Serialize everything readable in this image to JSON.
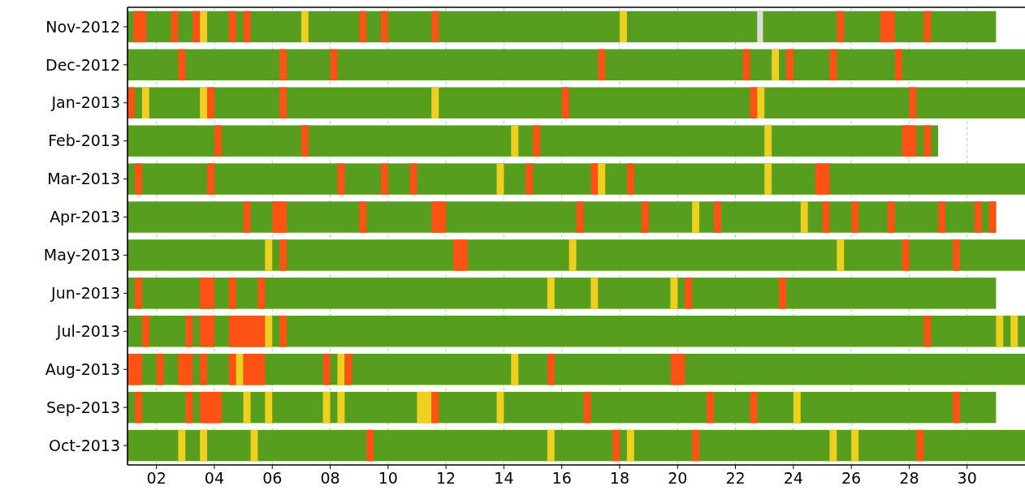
{
  "chart_data": {
    "type": "bar",
    "orientation": "horizontal",
    "categories": [
      "Nov-2012",
      "Dec-2012",
      "Jan-2013",
      "Feb-2013",
      "Mar-2013",
      "Apr-2013",
      "May-2013",
      "Jun-2013",
      "Jul-2013",
      "Aug-2013",
      "Sep-2013",
      "Oct-2013"
    ],
    "xlim": [
      1,
      32
    ],
    "xticks": [
      {
        "value": 2,
        "label": "02"
      },
      {
        "value": 4,
        "label": "04"
      },
      {
        "value": 6,
        "label": "06"
      },
      {
        "value": 8,
        "label": "08"
      },
      {
        "value": 10,
        "label": "10"
      },
      {
        "value": 12,
        "label": "12"
      },
      {
        "value": 14,
        "label": "14"
      },
      {
        "value": 16,
        "label": "16"
      },
      {
        "value": 18,
        "label": "18"
      },
      {
        "value": 20,
        "label": "20"
      },
      {
        "value": 22,
        "label": "22"
      },
      {
        "value": 24,
        "label": "24"
      },
      {
        "value": 26,
        "label": "26"
      },
      {
        "value": 28,
        "label": "28"
      },
      {
        "value": 30,
        "label": "30"
      }
    ],
    "grid": "x",
    "series": [
      {
        "color": "#589e1e",
        "base": [
          1,
          1,
          1,
          1,
          1,
          1,
          1,
          1,
          1,
          1,
          1,
          1
        ],
        "values": [
          30,
          31,
          31,
          28,
          31,
          30,
          31,
          30,
          31,
          31,
          30,
          31
        ]
      },
      {
        "base": [
          1.2,
          2.75,
          1,
          4,
          1.25,
          5,
          5.75,
          1.25,
          1.5,
          1,
          1.25,
          2.75
        ],
        "values": [
          0.45,
          0.25,
          0.25,
          0.25,
          0.25,
          0.25,
          0.25,
          0.25,
          0.25,
          0.5,
          0.25,
          0.25
        ],
        "colors": [
          "#fe5214",
          "#fe5214",
          "#fe5214",
          "#fe5214",
          "#fe5214",
          "#fe5214",
          "#efcf1f",
          "#fe5214",
          "#fe5214",
          "#fe5214",
          "#fe5214",
          "#efcf1f"
        ]
      },
      {
        "base": [
          2.5,
          6.25,
          1.5,
          7,
          3.75,
          6,
          6.25,
          3.5,
          3,
          2,
          3,
          3.5
        ],
        "values": [
          0.25,
          0.25,
          0.25,
          0.25,
          0.25,
          0.5,
          0.25,
          0.5,
          0.25,
          0.25,
          0.25,
          0.25
        ],
        "colors": [
          "#fe5214",
          "#fe5214",
          "#efcf1f",
          "#fe5214",
          "#fe5214",
          "#fe5214",
          "#fe5214",
          "#fe5214",
          "#fe5214",
          "#fe5214",
          "#fe5214",
          "#efcf1f"
        ]
      },
      {
        "base": [
          3.25,
          8,
          3.5,
          14.25,
          8.25,
          9,
          12.25,
          4.5,
          3.5,
          2.75,
          3.5,
          5.25
        ],
        "values": [
          0.25,
          0.25,
          0.25,
          0.25,
          0.25,
          0.25,
          0.5,
          0.25,
          0.5,
          0.5,
          0.75,
          0.25
        ],
        "colors": [
          "#fe5214",
          "#fe5214",
          "#efcf1f",
          "#efcf1f",
          "#fe5214",
          "#fe5214",
          "#fe5214",
          "#fe5214",
          "#fe5214",
          "#fe5214",
          "#fe5214",
          "#efcf1f"
        ]
      },
      {
        "base": [
          3.5,
          17.25,
          3.75,
          15,
          9.75,
          11.5,
          16.25,
          5.5,
          4.5,
          3.5,
          5,
          9.25
        ],
        "values": [
          0.25,
          0.25,
          0.25,
          0.25,
          0.25,
          0.5,
          0.25,
          0.25,
          1.25,
          0.25,
          0.25,
          0.25
        ],
        "colors": [
          "#efcf1f",
          "#fe5214",
          "#fe5214",
          "#fe5214",
          "#fe5214",
          "#fe5214",
          "#efcf1f",
          "#fe5214",
          "#fe5214",
          "#fe5214",
          "#efcf1f",
          "#fe5214"
        ]
      },
      {
        "base": [
          4.5,
          22.25,
          6.25,
          23,
          10.75,
          16.5,
          25.5,
          15.5,
          5.75,
          4.5,
          5.75,
          15.5
        ],
        "values": [
          0.25,
          0.25,
          0.25,
          0.25,
          0.25,
          0.25,
          0.25,
          0.25,
          0.25,
          0.25,
          0.25,
          0.25
        ],
        "colors": [
          "#fe5214",
          "#fe5214",
          "#fe5214",
          "#efcf1f",
          "#fe5214",
          "#fe5214",
          "#efcf1f",
          "#efcf1f",
          "#efcf1f",
          "#fe5214",
          "#efcf1f",
          "#efcf1f"
        ]
      },
      {
        "base": [
          5,
          23.25,
          11.5,
          27.75,
          13.75,
          18.75,
          27.75,
          17,
          6.25,
          4.75,
          7.75,
          17.75
        ],
        "values": [
          0.25,
          0.25,
          0.25,
          0.5,
          0.25,
          0.25,
          0.25,
          0.25,
          0.25,
          0.25,
          0.25,
          0.25
        ],
        "colors": [
          "#fe5214",
          "#efcf1f",
          "#efcf1f",
          "#fe5214",
          "#efcf1f",
          "#fe5214",
          "#fe5214",
          "#efcf1f",
          "#fe5214",
          "#efcf1f",
          "#efcf1f",
          "#fe5214"
        ]
      },
      {
        "base": [
          7,
          23.75,
          16,
          28.5,
          14.75,
          20.5,
          29.5,
          19.75,
          28.5,
          5,
          8.25,
          18.25
        ],
        "values": [
          0.25,
          0.25,
          0.25,
          0.25,
          0.25,
          0.25,
          0.25,
          0.25,
          0.25,
          0.75,
          0.25,
          0.25
        ],
        "colors": [
          "#efcf1f",
          "#fe5214",
          "#fe5214",
          "#fe5214",
          "#fe5214",
          "#efcf1f",
          "#fe5214",
          "#efcf1f",
          "#fe5214",
          "#fe5214",
          "#efcf1f",
          "#efcf1f"
        ]
      },
      {
        "base": [
          9,
          25.25,
          22.5,
          null,
          17,
          21.25,
          null,
          20.25,
          31,
          7.75,
          11,
          20.5
        ],
        "values": [
          0.25,
          0.25,
          0.25,
          null,
          0.25,
          0.25,
          null,
          0.25,
          0.25,
          0.25,
          0.5,
          0.25
        ],
        "colors": [
          "#fe5214",
          "#fe5214",
          "#fe5214",
          null,
          "#fe5214",
          "#fe5214",
          null,
          "#fe5214",
          "#efcf1f",
          "#fe5214",
          "#efcf1f",
          "#fe5214"
        ]
      },
      {
        "base": [
          9.75,
          27.5,
          22.75,
          null,
          17.25,
          24.25,
          null,
          23.5,
          31.5,
          8.25,
          11.5,
          25.25
        ],
        "values": [
          0.25,
          0.25,
          0.25,
          null,
          0.25,
          0.25,
          null,
          0.25,
          0.25,
          0.25,
          0.25,
          0.25
        ],
        "colors": [
          "#fe5214",
          "#fe5214",
          "#efcf1f",
          null,
          "#efcf1f",
          "#efcf1f",
          null,
          "#fe5214",
          "#efcf1f",
          "#efcf1f",
          "#fe5214",
          "#efcf1f"
        ]
      },
      {
        "base": [
          11.5,
          null,
          28,
          null,
          18.25,
          25,
          null,
          null,
          null,
          8.5,
          13.75,
          26
        ],
        "values": [
          0.25,
          null,
          0.25,
          null,
          0.25,
          0.25,
          null,
          null,
          null,
          0.25,
          0.25,
          0.25
        ],
        "colors": [
          "#fe5214",
          null,
          "#fe5214",
          null,
          "#fe5214",
          "#fe5214",
          null,
          null,
          null,
          "#fe5214",
          "#efcf1f",
          "#efcf1f"
        ]
      },
      {
        "base": [
          18,
          null,
          null,
          null,
          23,
          26,
          null,
          null,
          null,
          14.25,
          16.75,
          28.25
        ],
        "values": [
          0.25,
          null,
          null,
          null,
          0.25,
          0.25,
          null,
          null,
          null,
          0.25,
          0.25,
          0.25
        ],
        "colors": [
          "#efcf1f",
          null,
          null,
          null,
          "#efcf1f",
          "#fe5214",
          null,
          null,
          null,
          "#efcf1f",
          "#fe5214",
          "#fe5214"
        ]
      },
      {
        "base": [
          22.75,
          null,
          null,
          null,
          24.75,
          27.25,
          null,
          null,
          null,
          15.5,
          21,
          null
        ],
        "values": [
          0.2,
          null,
          null,
          null,
          0.5,
          0.25,
          null,
          null,
          null,
          0.25,
          0.25,
          null
        ],
        "colors": [
          "#dcdcdc",
          null,
          null,
          null,
          "#fe5214",
          "#fe5214",
          null,
          null,
          null,
          "#fe5214",
          "#fe5214",
          null
        ]
      },
      {
        "base": [
          25.5,
          null,
          null,
          null,
          null,
          29,
          null,
          null,
          null,
          19.75,
          22.5,
          null
        ],
        "values": [
          0.25,
          null,
          null,
          null,
          null,
          0.25,
          null,
          null,
          null,
          0.5,
          0.25,
          null
        ],
        "colors": [
          "#fe5214",
          null,
          null,
          null,
          null,
          "#fe5214",
          null,
          null,
          null,
          "#fe5214",
          "#fe5214",
          null
        ]
      },
      {
        "base": [
          27,
          null,
          null,
          null,
          null,
          30.25,
          null,
          null,
          null,
          null,
          24,
          null
        ],
        "values": [
          0.5,
          null,
          null,
          null,
          null,
          0.25,
          null,
          null,
          null,
          null,
          0.25,
          null
        ],
        "colors": [
          "#fe5214",
          null,
          null,
          null,
          null,
          "#fe5214",
          null,
          null,
          null,
          null,
          "#efcf1f",
          null
        ]
      },
      {
        "base": [
          28.5,
          null,
          null,
          null,
          null,
          30.75,
          null,
          null,
          null,
          null,
          29.5,
          null
        ],
        "values": [
          0.25,
          null,
          null,
          null,
          null,
          0.25,
          null,
          null,
          null,
          null,
          0.25,
          null
        ],
        "colors": [
          "#fe5214",
          null,
          null,
          null,
          null,
          "#fe5214",
          null,
          null,
          null,
          null,
          "#fe5214",
          null
        ]
      }
    ]
  }
}
